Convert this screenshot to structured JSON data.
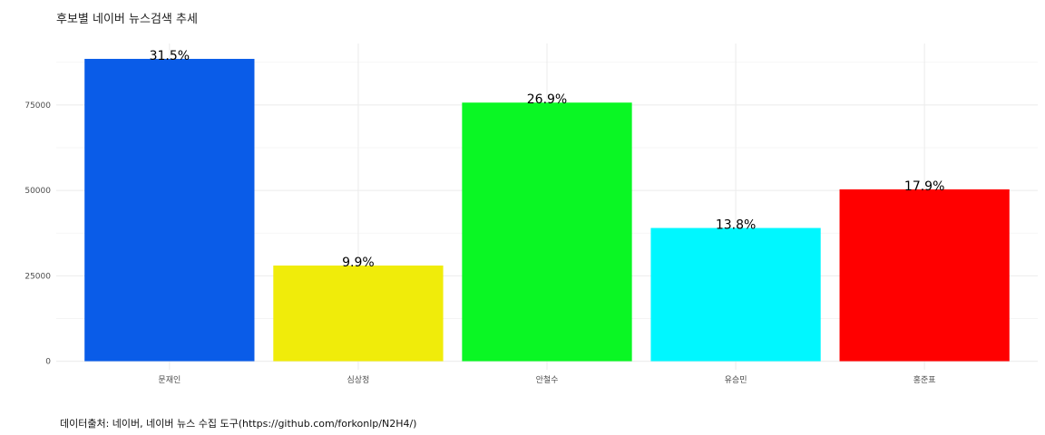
{
  "chart_data": {
    "type": "bar",
    "title": "후보별 네이버 뉴스검색 추세",
    "caption": "데이터출처: 네이버, 네이버 뉴스 수집 도구(https://github.com/forkonlp/N2H4/)",
    "xlabel": "",
    "ylabel": "",
    "categories": [
      "문재인",
      "심상정",
      "안철수",
      "유승민",
      "홍준표"
    ],
    "values": [
      88500,
      28000,
      75700,
      39000,
      50300
    ],
    "labels": [
      "31.5%",
      "9.9%",
      "26.9%",
      "13.8%",
      "17.9%"
    ],
    "colors": [
      "#0a5ce8",
      "#f0ec0a",
      "#0af724",
      "#00f7ff",
      "#ff0000"
    ],
    "ylim": [
      -2500,
      93000
    ],
    "yticks": [
      0,
      25000,
      50000,
      75000
    ],
    "ytick_labels": [
      "0",
      "25000",
      "50000",
      "75000"
    ],
    "grid": true,
    "legend": "none"
  }
}
